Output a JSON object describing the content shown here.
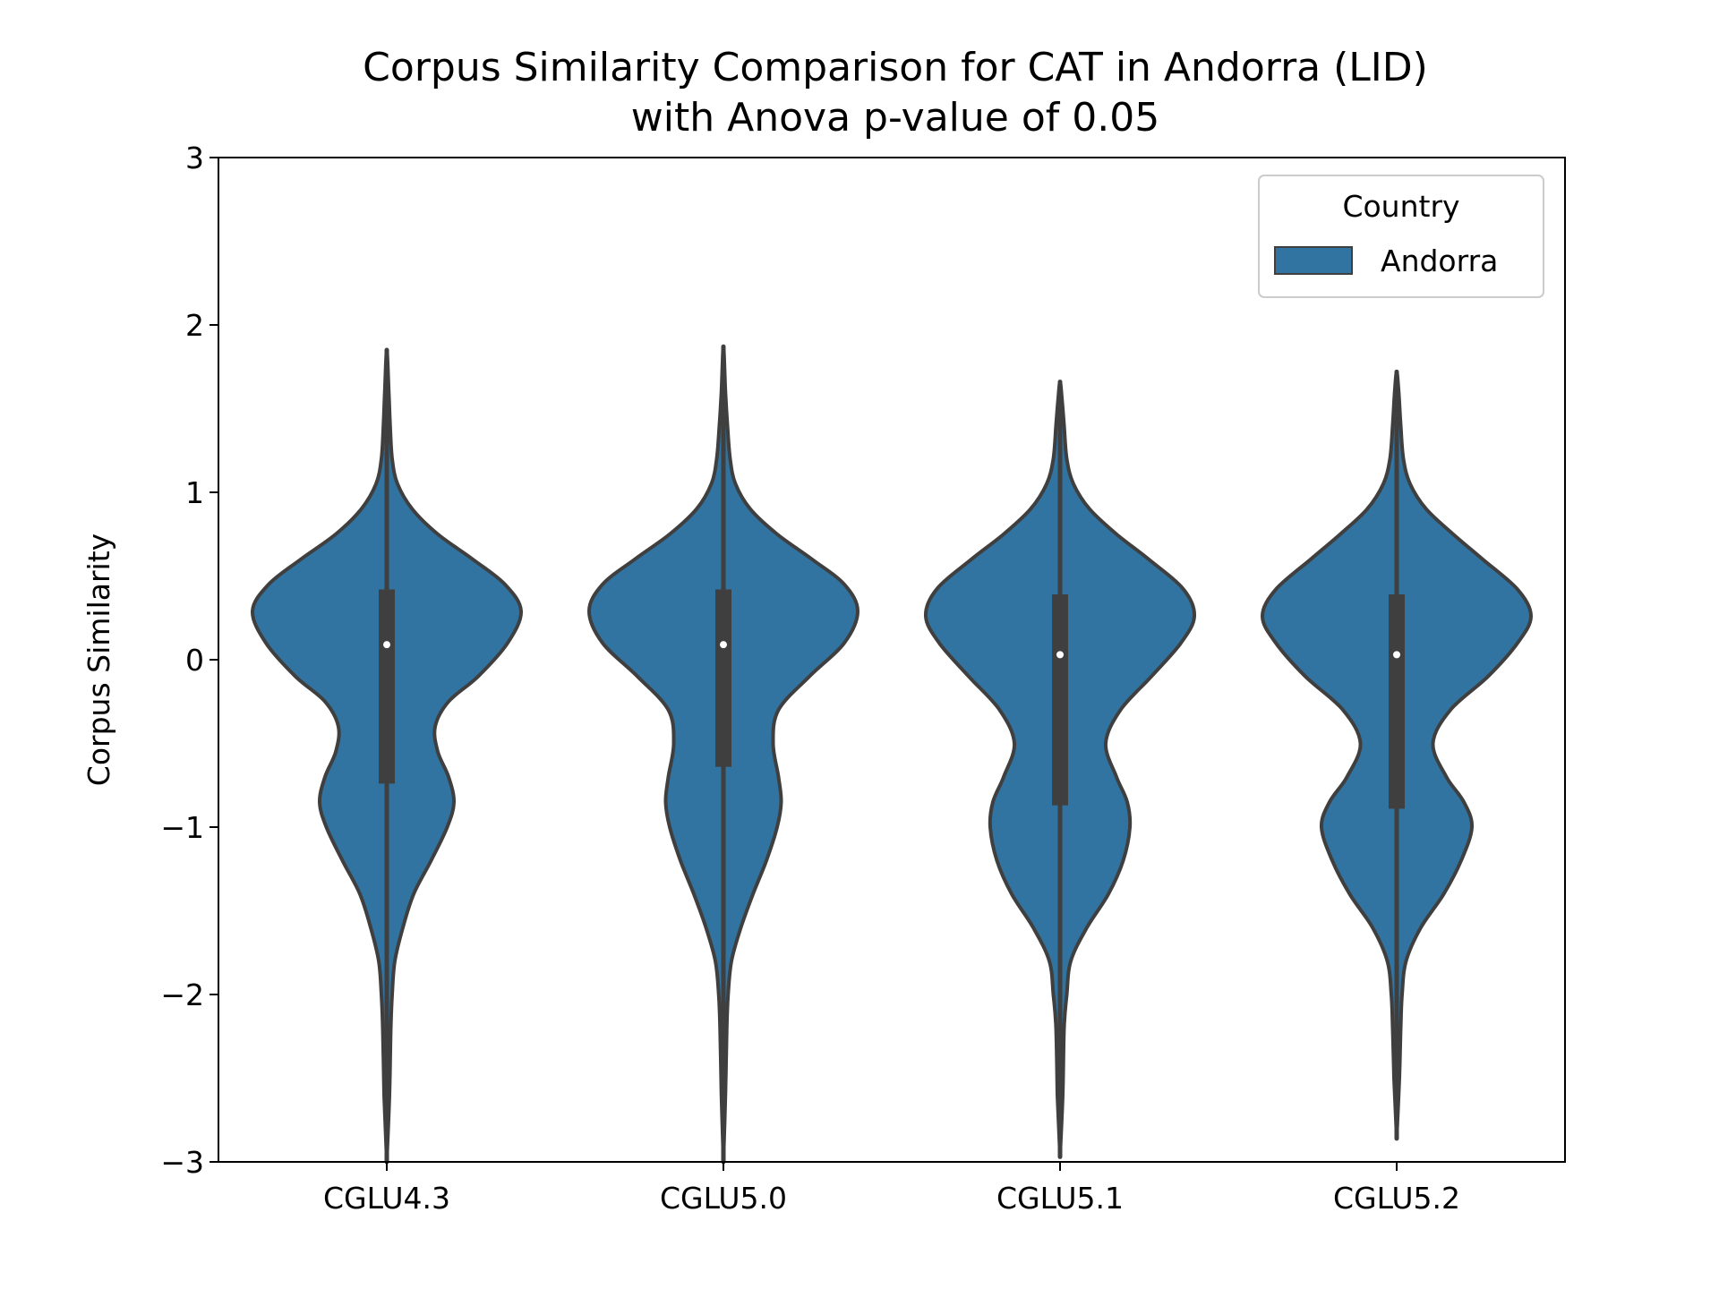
{
  "chart_data": {
    "type": "violin",
    "title": "Corpus Similarity Comparison for CAT in Andorra (LID)",
    "subtitle": "with Anova p-value of 0.05",
    "xlabel": "",
    "ylabel": "Corpus Similarity",
    "ylim": [
      -3,
      3
    ],
    "yticks": [
      -3,
      -2,
      -1,
      0,
      1,
      2,
      3
    ],
    "ytick_labels": [
      "−3",
      "−2",
      "−1",
      "0",
      "1",
      "2",
      "3"
    ],
    "categories": [
      "CGLU4.3",
      "CGLU5.0",
      "CGLU5.1",
      "CGLU5.2"
    ],
    "grid": false,
    "legend": {
      "title": "Country",
      "placement": "top-right",
      "entries": [
        {
          "name": "Andorra",
          "color": "#3274a1"
        }
      ]
    },
    "series": [
      {
        "name": "Andorra",
        "color": "#3274a1",
        "outline_color": "#3f3f3f",
        "violins": [
          {
            "category": "CGLU4.3",
            "median": 0.09,
            "q1": -0.74,
            "q3": 0.42,
            "whisker_low": -3.0,
            "whisker_high": 1.85,
            "density": [
              [
                -3.0,
                0.0
              ],
              [
                -2.6,
                0.02
              ],
              [
                -2.2,
                0.03
              ],
              [
                -2.0,
                0.04
              ],
              [
                -1.8,
                0.06
              ],
              [
                -1.6,
                0.12
              ],
              [
                -1.4,
                0.2
              ],
              [
                -1.2,
                0.33
              ],
              [
                -1.0,
                0.45
              ],
              [
                -0.85,
                0.5
              ],
              [
                -0.7,
                0.46
              ],
              [
                -0.55,
                0.38
              ],
              [
                -0.4,
                0.36
              ],
              [
                -0.25,
                0.46
              ],
              [
                -0.1,
                0.68
              ],
              [
                0.1,
                0.9
              ],
              [
                0.29,
                1.0
              ],
              [
                0.45,
                0.88
              ],
              [
                0.6,
                0.64
              ],
              [
                0.75,
                0.38
              ],
              [
                0.9,
                0.19
              ],
              [
                1.05,
                0.08
              ],
              [
                1.2,
                0.04
              ],
              [
                1.4,
                0.025
              ],
              [
                1.6,
                0.015
              ],
              [
                1.85,
                0.0
              ]
            ]
          },
          {
            "category": "CGLU5.0",
            "median": 0.09,
            "q1": -0.64,
            "q3": 0.42,
            "whisker_low": -3.0,
            "whisker_high": 1.87,
            "density": [
              [
                -3.0,
                0.0
              ],
              [
                -2.6,
                0.015
              ],
              [
                -2.2,
                0.025
              ],
              [
                -2.0,
                0.035
              ],
              [
                -1.8,
                0.06
              ],
              [
                -1.6,
                0.13
              ],
              [
                -1.4,
                0.22
              ],
              [
                -1.2,
                0.32
              ],
              [
                -1.0,
                0.4
              ],
              [
                -0.85,
                0.43
              ],
              [
                -0.7,
                0.41
              ],
              [
                -0.5,
                0.37
              ],
              [
                -0.3,
                0.41
              ],
              [
                -0.1,
                0.64
              ],
              [
                0.1,
                0.9
              ],
              [
                0.29,
                1.0
              ],
              [
                0.45,
                0.9
              ],
              [
                0.6,
                0.66
              ],
              [
                0.75,
                0.4
              ],
              [
                0.9,
                0.2
              ],
              [
                1.05,
                0.09
              ],
              [
                1.2,
                0.05
              ],
              [
                1.4,
                0.03
              ],
              [
                1.6,
                0.015
              ],
              [
                1.87,
                0.0
              ]
            ]
          },
          {
            "category": "CGLU5.1",
            "median": 0.03,
            "q1": -0.87,
            "q3": 0.39,
            "whisker_low": -2.97,
            "whisker_high": 1.66,
            "density": [
              [
                -2.97,
                0.0
              ],
              [
                -2.6,
                0.02
              ],
              [
                -2.2,
                0.03
              ],
              [
                -2.0,
                0.05
              ],
              [
                -1.8,
                0.08
              ],
              [
                -1.6,
                0.2
              ],
              [
                -1.4,
                0.36
              ],
              [
                -1.2,
                0.47
              ],
              [
                -1.0,
                0.52
              ],
              [
                -0.85,
                0.5
              ],
              [
                -0.7,
                0.42
              ],
              [
                -0.5,
                0.34
              ],
              [
                -0.3,
                0.45
              ],
              [
                -0.1,
                0.68
              ],
              [
                0.1,
                0.9
              ],
              [
                0.26,
                1.0
              ],
              [
                0.42,
                0.92
              ],
              [
                0.6,
                0.66
              ],
              [
                0.75,
                0.42
              ],
              [
                0.9,
                0.22
              ],
              [
                1.05,
                0.1
              ],
              [
                1.2,
                0.05
              ],
              [
                1.4,
                0.03
              ],
              [
                1.55,
                0.015
              ],
              [
                1.66,
                0.0
              ]
            ]
          },
          {
            "category": "CGLU5.2",
            "median": 0.03,
            "q1": -0.89,
            "q3": 0.39,
            "whisker_low": -2.86,
            "whisker_high": 1.72,
            "density": [
              [
                -2.86,
                0.0
              ],
              [
                -2.5,
                0.02
              ],
              [
                -2.2,
                0.03
              ],
              [
                -2.0,
                0.04
              ],
              [
                -1.8,
                0.07
              ],
              [
                -1.6,
                0.18
              ],
              [
                -1.4,
                0.35
              ],
              [
                -1.2,
                0.48
              ],
              [
                -1.0,
                0.56
              ],
              [
                -0.85,
                0.5
              ],
              [
                -0.7,
                0.37
              ],
              [
                -0.5,
                0.27
              ],
              [
                -0.3,
                0.4
              ],
              [
                -0.1,
                0.68
              ],
              [
                0.1,
                0.9
              ],
              [
                0.26,
                1.0
              ],
              [
                0.42,
                0.9
              ],
              [
                0.6,
                0.64
              ],
              [
                0.75,
                0.42
              ],
              [
                0.9,
                0.22
              ],
              [
                1.05,
                0.1
              ],
              [
                1.2,
                0.05
              ],
              [
                1.4,
                0.03
              ],
              [
                1.6,
                0.015
              ],
              [
                1.72,
                0.0
              ]
            ]
          }
        ]
      }
    ]
  }
}
